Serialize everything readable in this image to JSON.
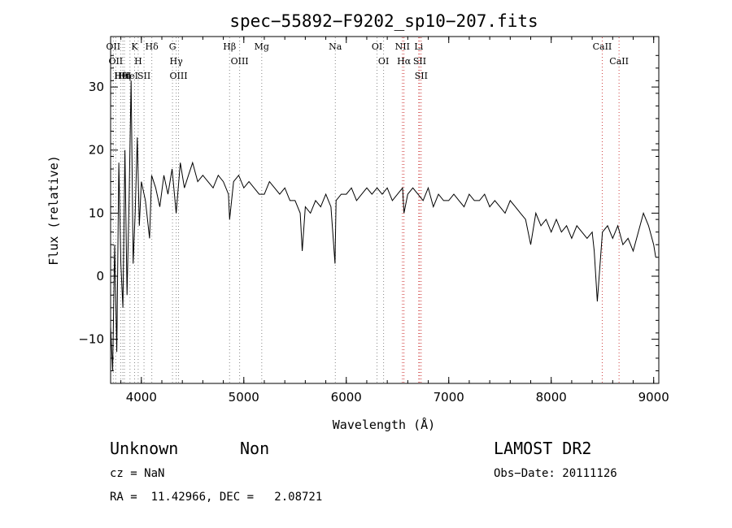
{
  "chart_data": {
    "type": "line",
    "title": "spec−55892−F9202_sp10−207.fits",
    "xlabel": "Wavelength (Å)",
    "ylabel": "Flux (relative)",
    "xlim": [
      3700,
      9050
    ],
    "ylim": [
      -17,
      38
    ],
    "xticks": [
      4000,
      5000,
      6000,
      7000,
      8000,
      9000
    ],
    "yticks": [
      -10,
      0,
      10,
      20,
      30
    ],
    "xtick_labels": [
      "4000",
      "5000",
      "6000",
      "7000",
      "8000",
      "9000"
    ],
    "ytick_labels": [
      "−10",
      "0",
      "10",
      "20",
      "30"
    ],
    "grid": false,
    "legend": "none",
    "series": [
      {
        "color": "#000000",
        "x": [
          3700,
          3720,
          3740,
          3760,
          3780,
          3800,
          3820,
          3840,
          3860,
          3880,
          3900,
          3920,
          3940,
          3960,
          3980,
          4000,
          4040,
          4080,
          4100,
          4140,
          4180,
          4220,
          4260,
          4300,
          4340,
          4380,
          4420,
          4460,
          4500,
          4550,
          4600,
          4650,
          4700,
          4750,
          4800,
          4850,
          4861,
          4900,
          4950,
          5000,
          5050,
          5100,
          5150,
          5200,
          5250,
          5300,
          5350,
          5400,
          5450,
          5500,
          5550,
          5570,
          5600,
          5650,
          5700,
          5750,
          5800,
          5850,
          5890,
          5900,
          5950,
          6000,
          6050,
          6100,
          6150,
          6200,
          6250,
          6300,
          6350,
          6400,
          6450,
          6500,
          6550,
          6563,
          6600,
          6650,
          6700,
          6750,
          6800,
          6850,
          6900,
          6950,
          7000,
          7050,
          7100,
          7150,
          7200,
          7250,
          7300,
          7350,
          7400,
          7450,
          7500,
          7550,
          7600,
          7650,
          7700,
          7750,
          7800,
          7850,
          7900,
          7950,
          8000,
          8050,
          8100,
          8150,
          8200,
          8250,
          8300,
          8350,
          8400,
          8420,
          8450,
          8500,
          8550,
          8600,
          8650,
          8700,
          8750,
          8800,
          8850,
          8900,
          8950,
          9000,
          9020
        ],
        "y": [
          -8,
          -15,
          5,
          -12,
          18,
          2,
          -5,
          20,
          -3,
          12,
          31,
          2,
          10,
          22,
          8,
          15,
          12,
          6,
          16,
          14,
          11,
          16,
          13,
          17,
          10,
          18,
          14,
          16,
          18,
          15,
          16,
          15,
          14,
          16,
          15,
          13,
          9,
          15,
          16,
          14,
          15,
          14,
          13,
          13,
          15,
          14,
          13,
          14,
          12,
          12,
          10,
          4,
          11,
          10,
          12,
          11,
          13,
          11,
          2,
          12,
          13,
          13,
          14,
          12,
          13,
          14,
          13,
          14,
          13,
          14,
          12,
          13,
          14,
          10,
          13,
          14,
          13,
          12,
          14,
          11,
          13,
          12,
          12,
          13,
          12,
          11,
          13,
          12,
          12,
          13,
          11,
          12,
          11,
          10,
          12,
          11,
          10,
          9,
          5,
          10,
          8,
          9,
          7,
          9,
          7,
          8,
          6,
          8,
          7,
          6,
          7,
          4,
          -4,
          7,
          8,
          6,
          8,
          5,
          6,
          4,
          7,
          10,
          8,
          5,
          3
        ]
      }
    ],
    "line_markers": [
      {
        "wl": 3726,
        "labels": [
          "OII"
        ],
        "color": "gray"
      },
      {
        "wl": 3750,
        "labels": [
          "OII"
        ],
        "color": "gray"
      },
      {
        "wl": 3798,
        "labels": [
          "Hθ"
        ],
        "color": "gray"
      },
      {
        "wl": 3819,
        "labels": [
          "HeI"
        ],
        "color": "gray"
      },
      {
        "wl": 3835,
        "labels": [
          "Hη"
        ],
        "color": "gray"
      },
      {
        "wl": 3889,
        "labels": [
          "HeI"
        ],
        "color": "gray"
      },
      {
        "wl": 3934,
        "labels": [
          "K"
        ],
        "color": "gray"
      },
      {
        "wl": 3969,
        "labels": [
          "H"
        ],
        "color": "gray"
      },
      {
        "wl": 4026,
        "labels": [
          "SII"
        ],
        "color": "gray"
      },
      {
        "wl": 4102,
        "labels": [
          "Hδ"
        ],
        "color": "gray"
      },
      {
        "wl": 4304,
        "labels": [
          "G"
        ],
        "color": "gray"
      },
      {
        "wl": 4340,
        "labels": [
          "Hγ"
        ],
        "color": "gray"
      },
      {
        "wl": 4363,
        "labels": [
          "OIII"
        ],
        "color": "gray"
      },
      {
        "wl": 4861,
        "labels": [
          "Hβ"
        ],
        "color": "gray"
      },
      {
        "wl": 4959,
        "labels": [
          "OIII"
        ],
        "color": "gray"
      },
      {
        "wl": 5175,
        "labels": [
          "Mg"
        ],
        "color": "gray"
      },
      {
        "wl": 5893,
        "labels": [
          "Na"
        ],
        "color": "gray"
      },
      {
        "wl": 6300,
        "labels": [
          "OI"
        ],
        "color": "gray"
      },
      {
        "wl": 6364,
        "labels": [
          "OI"
        ],
        "color": "gray"
      },
      {
        "wl": 6548,
        "labels": [
          "NII"
        ],
        "color": "red"
      },
      {
        "wl": 6563,
        "labels": [
          "Hα"
        ],
        "color": "red"
      },
      {
        "wl": 6707,
        "labels": [
          "Li"
        ],
        "color": "red"
      },
      {
        "wl": 6716,
        "labels": [
          "SII"
        ],
        "color": "red"
      },
      {
        "wl": 6731,
        "labels": [
          "SII"
        ],
        "color": "red"
      },
      {
        "wl": 8498,
        "labels": [
          "CaII"
        ],
        "color": "red"
      },
      {
        "wl": 8662,
        "labels": [
          "CaII"
        ],
        "color": "red"
      }
    ]
  },
  "info": {
    "class": "Unknown",
    "subclass": "Non",
    "survey": "LAMOST DR2",
    "cz": "cz = NaN",
    "obs_date": "Obs−Date: 20111126",
    "coords": "RA =  11.42966, DEC =   2.08721"
  },
  "colors": {
    "axis": "#000000",
    "spectrum": "#000000",
    "marker_gray": "#888888",
    "marker_red": "#d04040"
  }
}
